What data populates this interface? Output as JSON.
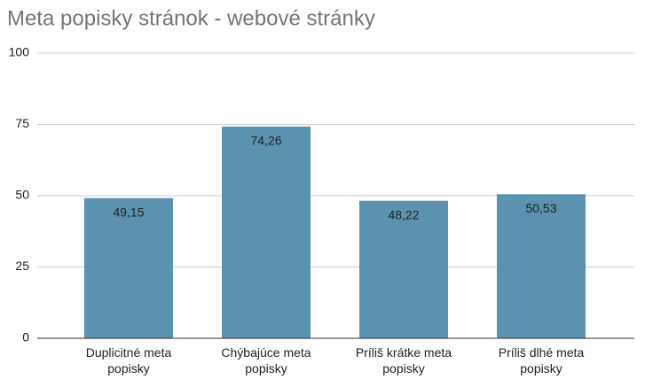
{
  "chart_data": {
    "type": "bar",
    "title": "Meta popisky stránok - webové stránky",
    "categories": [
      "Duplicitné meta popisky",
      "Chýbajúce meta popisky",
      "Príliš krátke meta popisky",
      "Príliš dlhé meta popisky"
    ],
    "values": [
      49.15,
      74.26,
      48.22,
      50.53
    ],
    "value_labels": [
      "49,15",
      "74,26",
      "48,22",
      "50,53"
    ],
    "color": "#5a92b0",
    "ylim": [
      0,
      100
    ],
    "yticks": [
      0,
      25,
      50,
      75,
      100
    ],
    "grid": true
  }
}
